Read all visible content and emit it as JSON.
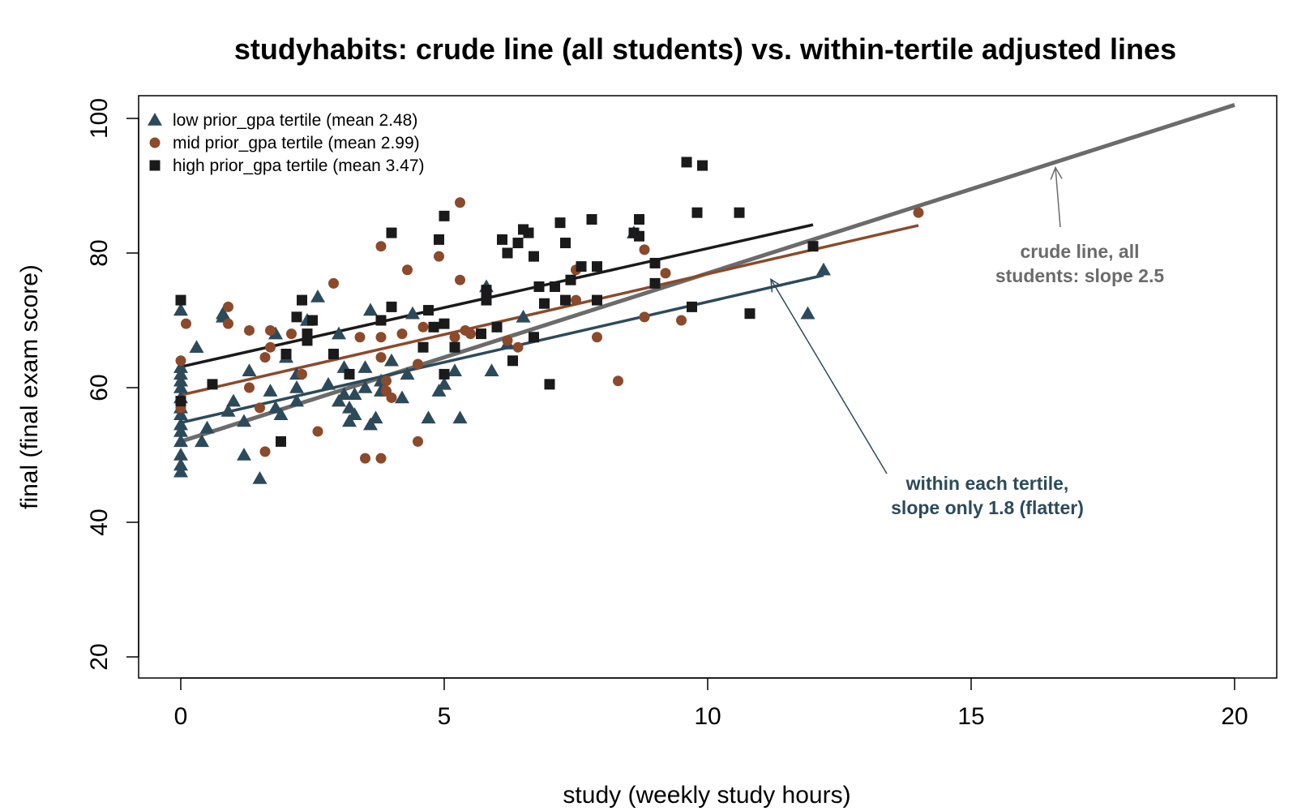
{
  "chart_data": {
    "type": "scatter",
    "title": "studyhabits: crude line (all students) vs. within-tertile adjusted lines",
    "xlabel": "study (weekly study hours)",
    "ylabel": "final (final exam score)",
    "xlim": [
      0,
      20
    ],
    "ylim": [
      20,
      100
    ],
    "x_ticks": [
      "0",
      "5",
      "10",
      "15",
      "20"
    ],
    "y_ticks": [
      "20",
      "40",
      "60",
      "80",
      "100"
    ],
    "legend_position": "top-left",
    "series": [
      {
        "name": "low prior_gpa tertile (mean 2.48)",
        "color": "#2d4a5a",
        "marker": "triangle",
        "points": [
          [
            0,
            47.5
          ],
          [
            0,
            48.5
          ],
          [
            0,
            50
          ],
          [
            0,
            52
          ],
          [
            0,
            53.5
          ],
          [
            0,
            54.5
          ],
          [
            0,
            56
          ],
          [
            0,
            57
          ],
          [
            0,
            58.5
          ],
          [
            0,
            60
          ],
          [
            0,
            61
          ],
          [
            0,
            62
          ],
          [
            0,
            63
          ],
          [
            0,
            71.5
          ],
          [
            0.3,
            66
          ],
          [
            0.4,
            52
          ],
          [
            0.5,
            54
          ],
          [
            0.8,
            70.5
          ],
          [
            0.8,
            71
          ],
          [
            0.9,
            56.5
          ],
          [
            1,
            58
          ],
          [
            1.2,
            50
          ],
          [
            1.2,
            55
          ],
          [
            1.3,
            62.5
          ],
          [
            1.5,
            46.5
          ],
          [
            1.7,
            59.5
          ],
          [
            1.8,
            57
          ],
          [
            1.8,
            68
          ],
          [
            1.9,
            56
          ],
          [
            2,
            64.5
          ],
          [
            2.2,
            58
          ],
          [
            2.2,
            60
          ],
          [
            2.2,
            62
          ],
          [
            2.4,
            70
          ],
          [
            2.6,
            73.5
          ],
          [
            2.8,
            60.5
          ],
          [
            3,
            58
          ],
          [
            3,
            68
          ],
          [
            3.1,
            59
          ],
          [
            3.1,
            63
          ],
          [
            3.2,
            55
          ],
          [
            3.2,
            57
          ],
          [
            3.3,
            56
          ],
          [
            3.3,
            59
          ],
          [
            3.5,
            60
          ],
          [
            3.5,
            63
          ],
          [
            3.6,
            71.5
          ],
          [
            3.6,
            54.5
          ],
          [
            3.7,
            55.5
          ],
          [
            3.8,
            59.5
          ],
          [
            3.8,
            61
          ],
          [
            4,
            64
          ],
          [
            4.2,
            58.5
          ],
          [
            4.3,
            62
          ],
          [
            4.4,
            71
          ],
          [
            4.7,
            55.5
          ],
          [
            4.9,
            59.5
          ],
          [
            5,
            60.5
          ],
          [
            5.2,
            62.5
          ],
          [
            5.3,
            55.5
          ],
          [
            5.8,
            75
          ],
          [
            5.9,
            62.5
          ],
          [
            6.2,
            66.5
          ],
          [
            6.5,
            70.5
          ],
          [
            8.6,
            83
          ],
          [
            11.9,
            71
          ],
          [
            12.2,
            77.5
          ]
        ],
        "fit": {
          "x": [
            0,
            12.2
          ],
          "y": [
            54.8,
            76.7
          ]
        }
      },
      {
        "name": "mid prior_gpa tertile (mean 2.99)",
        "color": "#8b4a2b",
        "marker": "circle",
        "points": [
          [
            0,
            57
          ],
          [
            0,
            64
          ],
          [
            0.1,
            69.5
          ],
          [
            0.9,
            72
          ],
          [
            0.9,
            69.5
          ],
          [
            1.3,
            60
          ],
          [
            1.3,
            68.5
          ],
          [
            1.5,
            57
          ],
          [
            1.6,
            64.5
          ],
          [
            1.6,
            50.5
          ],
          [
            1.7,
            66
          ],
          [
            1.7,
            68.5
          ],
          [
            2.1,
            68
          ],
          [
            2.3,
            62
          ],
          [
            2.6,
            53.5
          ],
          [
            2.9,
            75.5
          ],
          [
            3.4,
            67.5
          ],
          [
            3.5,
            49.5
          ],
          [
            3.8,
            49.5
          ],
          [
            3.8,
            64.5
          ],
          [
            3.8,
            67.5
          ],
          [
            3.8,
            81
          ],
          [
            3.9,
            59.5
          ],
          [
            3.9,
            61
          ],
          [
            4,
            58.5
          ],
          [
            4.2,
            68
          ],
          [
            4.3,
            77.5
          ],
          [
            4.5,
            52
          ],
          [
            4.5,
            63.5
          ],
          [
            4.6,
            69
          ],
          [
            4.9,
            79.5
          ],
          [
            5.2,
            67.5
          ],
          [
            5.3,
            87.5
          ],
          [
            5.3,
            76
          ],
          [
            5.4,
            68.5
          ],
          [
            5.5,
            68
          ],
          [
            6.2,
            67
          ],
          [
            6.4,
            66
          ],
          [
            7.5,
            77.5
          ],
          [
            7.5,
            73
          ],
          [
            7.9,
            67.5
          ],
          [
            8.3,
            61
          ],
          [
            8.8,
            70.5
          ],
          [
            8.8,
            80.5
          ],
          [
            9.2,
            77
          ],
          [
            9.5,
            70
          ],
          [
            14,
            86
          ]
        ],
        "fit": {
          "x": [
            0,
            14
          ],
          "y": [
            58.9,
            84.1
          ]
        }
      },
      {
        "name": "high prior_gpa tertile (mean 3.47)",
        "color": "#1a1a1a",
        "marker": "square",
        "points": [
          [
            0,
            73
          ],
          [
            0,
            58
          ],
          [
            0.6,
            60.5
          ],
          [
            1.9,
            52
          ],
          [
            2,
            65
          ],
          [
            2.2,
            70.5
          ],
          [
            2.3,
            73
          ],
          [
            2.4,
            67
          ],
          [
            2.4,
            68
          ],
          [
            2.5,
            70
          ],
          [
            2.9,
            65
          ],
          [
            3.2,
            62
          ],
          [
            3.8,
            70
          ],
          [
            4,
            72
          ],
          [
            4,
            83
          ],
          [
            4.6,
            66
          ],
          [
            4.7,
            71.5
          ],
          [
            4.8,
            69
          ],
          [
            4.9,
            82
          ],
          [
            5,
            62
          ],
          [
            5,
            85.5
          ],
          [
            5,
            69.5
          ],
          [
            5.2,
            66
          ],
          [
            5.7,
            68
          ],
          [
            5.8,
            74.5
          ],
          [
            5.8,
            73
          ],
          [
            6,
            69
          ],
          [
            6.1,
            82
          ],
          [
            6.2,
            80
          ],
          [
            6.3,
            64
          ],
          [
            6.4,
            81.5
          ],
          [
            6.5,
            83.5
          ],
          [
            6.6,
            83
          ],
          [
            6.7,
            79.5
          ],
          [
            6.7,
            67.5
          ],
          [
            6.8,
            75
          ],
          [
            6.9,
            72.5
          ],
          [
            7,
            60.5
          ],
          [
            7.1,
            75
          ],
          [
            7.2,
            84.5
          ],
          [
            7.3,
            81.5
          ],
          [
            7.3,
            73
          ],
          [
            7.4,
            76
          ],
          [
            7.6,
            78
          ],
          [
            7.8,
            85
          ],
          [
            7.9,
            78
          ],
          [
            7.9,
            73
          ],
          [
            8.6,
            83
          ],
          [
            8.7,
            85
          ],
          [
            8.7,
            82.5
          ],
          [
            9,
            78.5
          ],
          [
            9,
            75.5
          ],
          [
            9.6,
            93.5
          ],
          [
            9.7,
            72
          ],
          [
            9.8,
            86
          ],
          [
            9.9,
            93
          ],
          [
            10.6,
            86
          ],
          [
            10.8,
            71
          ],
          [
            12,
            81
          ]
        ],
        "fit": {
          "x": [
            0,
            12
          ],
          "y": [
            63.1,
            84.2
          ]
        }
      }
    ],
    "crude_line": {
      "color": "#6b6b6b",
      "x": [
        0,
        20
      ],
      "y": [
        52,
        102
      ]
    },
    "annotations": [
      {
        "text_lines": [
          "crude line, all",
          "students: slope 2.5"
        ],
        "color": "#6b6b6b",
        "arrow_to": [
          16.6,
          92.7
        ]
      },
      {
        "text_lines": [
          "within each tertile,",
          "slope only 1.8 (flatter)"
        ],
        "color": "#2d4a5a",
        "arrow_to": [
          11.2,
          76.1
        ]
      }
    ]
  }
}
